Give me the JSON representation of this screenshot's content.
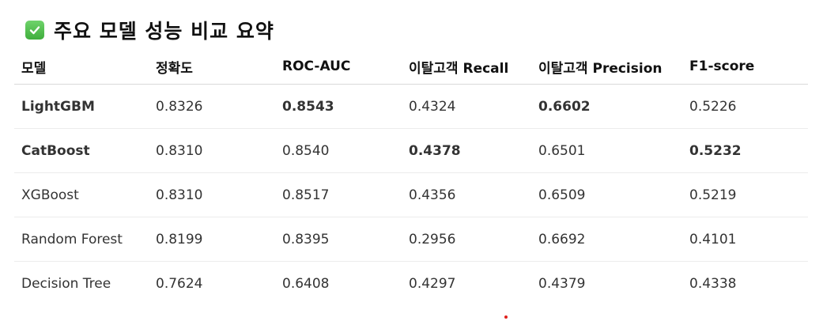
{
  "heading": {
    "icon": "check-mark-button-icon",
    "icon_color": "#4cc04a",
    "title": "주요 모델 성능 비교 요약"
  },
  "table": {
    "columns": [
      "모델",
      "정확도",
      "ROC-AUC",
      "이탈고객 Recall",
      "이탈고객 Precision",
      "F1-score"
    ],
    "rows": [
      {
        "cells": [
          "LightGBM",
          "0.8326",
          "0.8543",
          "0.4324",
          "0.6602",
          "0.5226"
        ],
        "bold": [
          true,
          false,
          true,
          false,
          true,
          false
        ]
      },
      {
        "cells": [
          "CatBoost",
          "0.8310",
          "0.8540",
          "0.4378",
          "0.6501",
          "0.5232"
        ],
        "bold": [
          true,
          false,
          false,
          true,
          false,
          true
        ]
      },
      {
        "cells": [
          "XGBoost",
          "0.8310",
          "0.8517",
          "0.4356",
          "0.6509",
          "0.5219"
        ],
        "bold": [
          false,
          false,
          false,
          false,
          false,
          false
        ]
      },
      {
        "cells": [
          "Random Forest",
          "0.8199",
          "0.8395",
          "0.2956",
          "0.6692",
          "0.4101"
        ],
        "bold": [
          false,
          false,
          false,
          false,
          false,
          false
        ]
      },
      {
        "cells": [
          "Decision Tree",
          "0.7624",
          "0.6408",
          "0.4297",
          "0.4379",
          "0.4338"
        ],
        "bold": [
          false,
          false,
          false,
          false,
          false,
          false
        ]
      }
    ]
  },
  "accent_colors": {
    "check_green": "#4cc04a",
    "stray_dot_red": "#e0201c"
  }
}
